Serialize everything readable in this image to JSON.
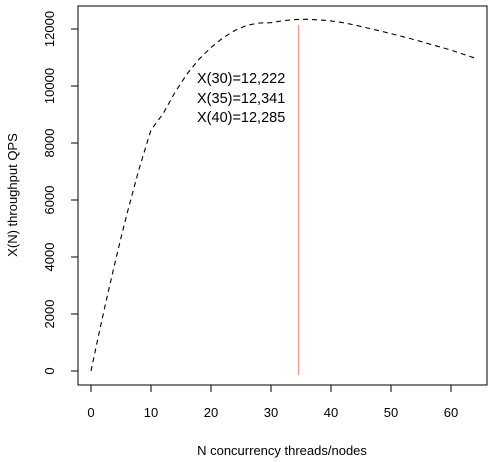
{
  "chart_data": {
    "type": "line",
    "title": "",
    "xlabel": "N concurrency threads/nodes",
    "ylabel": "X(N) throughput QPS",
    "xlim": [
      0,
      64
    ],
    "ylim": [
      0,
      12000
    ],
    "xticks": [
      0,
      10,
      20,
      30,
      40,
      50,
      60
    ],
    "yticks": [
      0,
      2000,
      4000,
      6000,
      8000,
      10000,
      12000
    ],
    "xtick_labels": [
      "0",
      "10",
      "20",
      "30",
      "40",
      "50",
      "60"
    ],
    "ytick_labels": [
      "0",
      "2000",
      "4000",
      "6000",
      "8000",
      "10000",
      "12000"
    ],
    "grid": false,
    "series": [
      {
        "name": "X(N) throughput",
        "style": "dashed",
        "color": "#000000",
        "x": [
          0,
          1,
          2,
          3,
          4,
          5,
          6,
          8,
          10,
          12,
          14,
          16,
          18,
          20,
          22,
          24,
          26,
          28,
          30,
          32,
          34,
          35,
          36,
          38,
          40,
          42,
          44,
          46,
          48,
          50,
          52,
          54,
          56,
          58,
          60,
          62,
          64
        ],
        "values": [
          0,
          995,
          1960,
          2895,
          3800,
          4675,
          5520,
          7080,
          8460,
          9020,
          9780,
          10420,
          10940,
          11350,
          11690,
          11950,
          12130,
          12210,
          12222,
          12290,
          12330,
          12341,
          12340,
          12320,
          12285,
          12220,
          12140,
          12040,
          11940,
          11840,
          11730,
          11620,
          11500,
          11380,
          11260,
          11120,
          10980
        ]
      }
    ],
    "vline": {
      "x": 34.6,
      "color": "#f4a08e",
      "from_value": -150,
      "to_value": 12150
    },
    "annotations": [
      "X(30)=12,222",
      "X(35)=12,341",
      "X(40)=12,285"
    ]
  }
}
